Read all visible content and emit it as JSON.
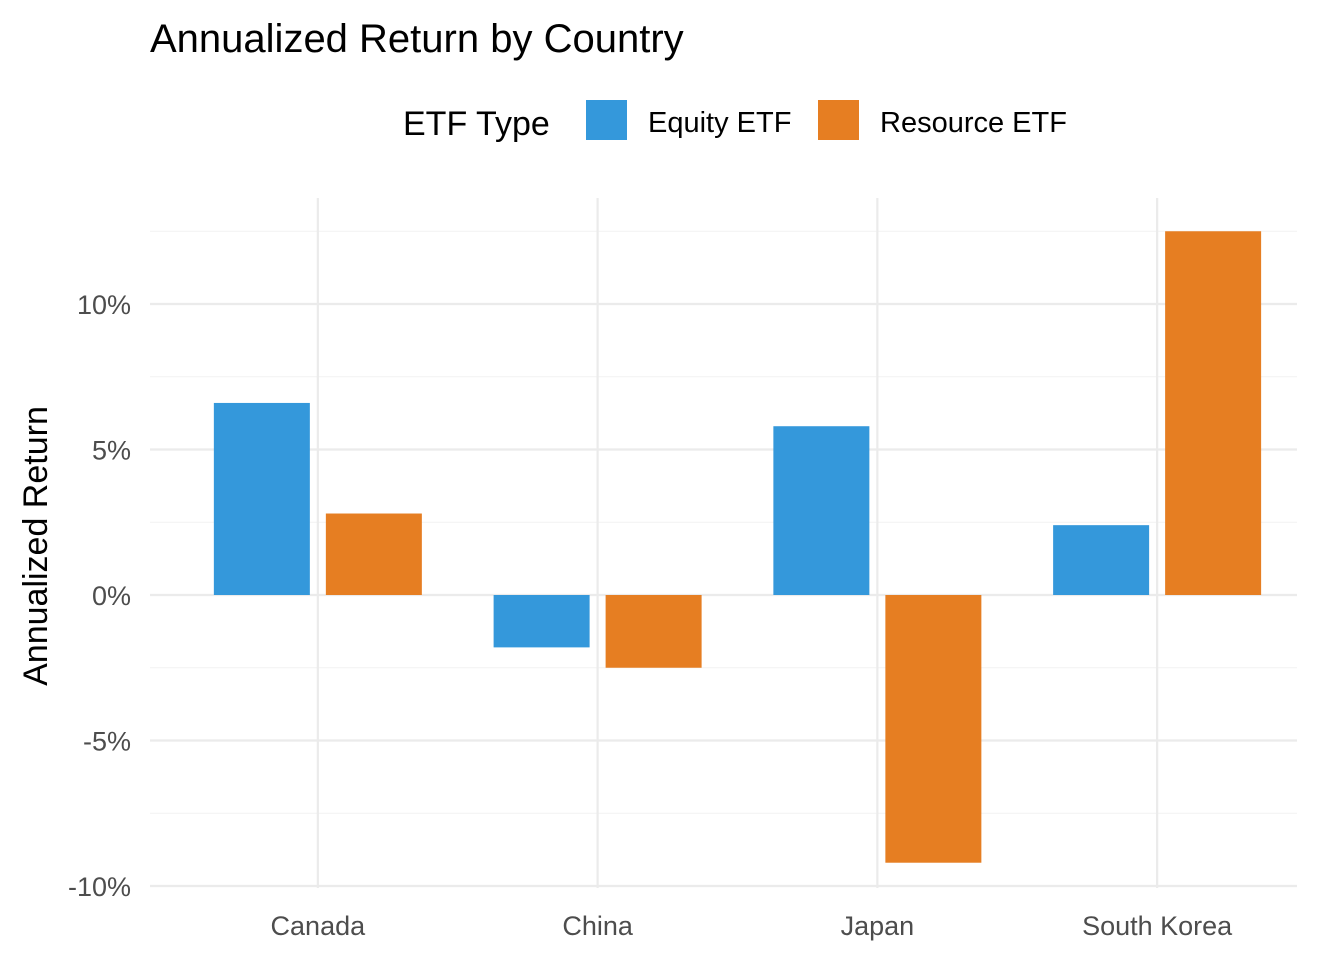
{
  "chart_data": {
    "type": "bar",
    "title": "Annualized Return by Country",
    "xlabel": "",
    "ylabel": "Annualized Return",
    "categories": [
      "Canada",
      "China",
      "Japan",
      "South Korea"
    ],
    "series": [
      {
        "name": "Equity ETF",
        "color": "#3498db",
        "values": [
          6.6,
          -1.8,
          5.8,
          2.4
        ]
      },
      {
        "name": "Resource ETF",
        "color": "#e67e22",
        "values": [
          2.8,
          -2.5,
          -9.2,
          12.5
        ]
      }
    ],
    "legend": {
      "title": "ETF Type",
      "position": "top"
    },
    "ylim": [
      -10,
      12.5
    ],
    "yticks": [
      -10,
      -5,
      0,
      5,
      10
    ],
    "ytick_labels": [
      "-10%",
      "-5%",
      "0%",
      "5%",
      "10%"
    ],
    "grid": true
  }
}
